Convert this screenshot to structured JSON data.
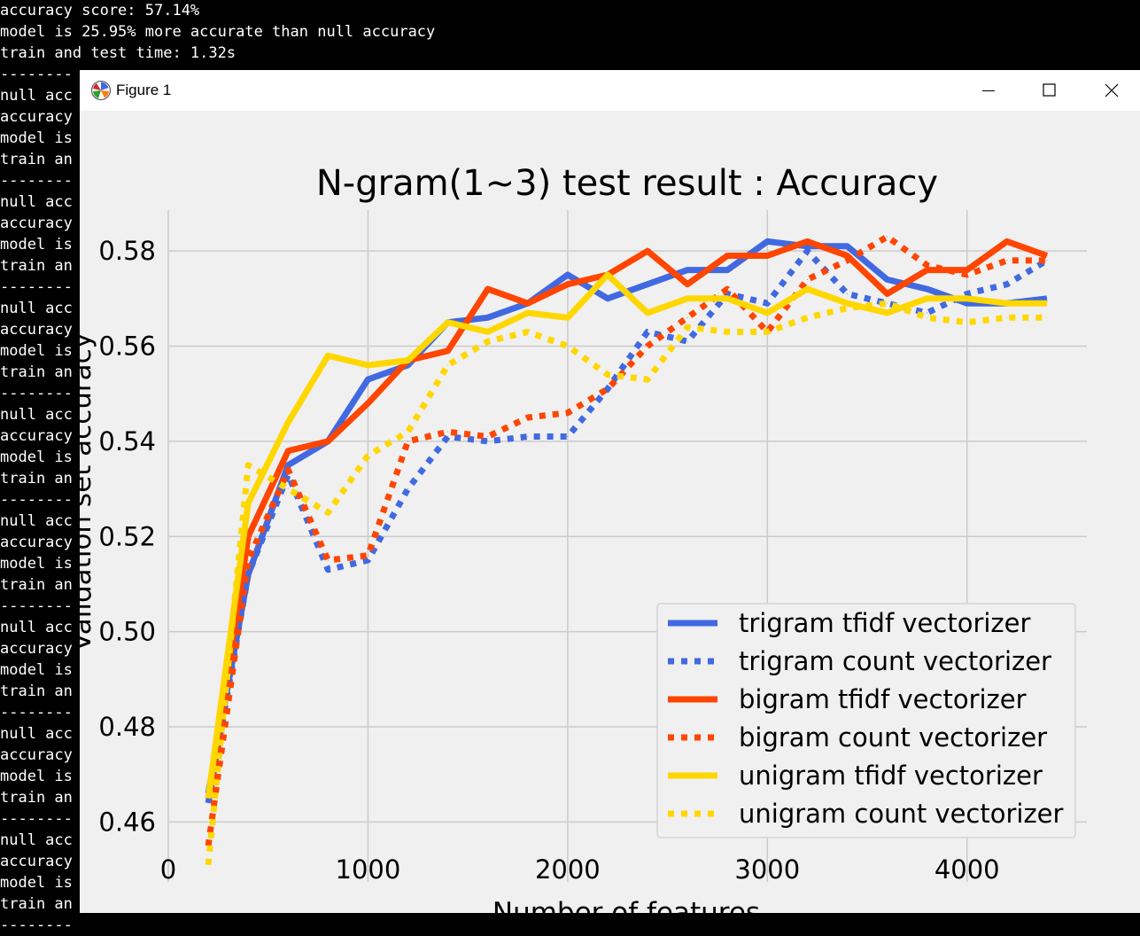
{
  "terminal": {
    "top_lines": [
      "accuracy score: 57.14%",
      "model is 25.95% more accurate than null accuracy",
      "train and test time: 1.32s",
      "--------"
    ],
    "repeat_block": [
      "null acc",
      "accuracy",
      "model is",
      "train an",
      "--------"
    ],
    "repeat_count": 8
  },
  "window": {
    "title": "Figure 1",
    "minimize_icon": "minimize-icon",
    "maximize_icon": "maximize-icon",
    "close_icon": "close-icon"
  },
  "chart_data": {
    "type": "line",
    "title": "N-gram(1~3) test result : Accuracy",
    "xlabel": "Number of features",
    "ylabel": "Validation set accuracy",
    "xlim": [
      0,
      4600
    ],
    "ylim": [
      0.4474,
      0.5886
    ],
    "x_ticks": [
      0,
      1000,
      2000,
      3000,
      4000
    ],
    "y_ticks": [
      0.46,
      0.48,
      0.5,
      0.52,
      0.54,
      0.56,
      0.58
    ],
    "x_tick_labels": [
      "0",
      "1000",
      "2000",
      "3000",
      "4000"
    ],
    "y_tick_labels": [
      "0.46",
      "0.48",
      "0.50",
      "0.52",
      "0.54",
      "0.56",
      "0.58"
    ],
    "grid": true,
    "legend_position": "lower right",
    "x": [
      200,
      400,
      600,
      800,
      1000,
      1200,
      1400,
      1600,
      1800,
      2000,
      2200,
      2400,
      2600,
      2800,
      3000,
      3200,
      3400,
      3600,
      3800,
      4000,
      4200,
      4400
    ],
    "series": [
      {
        "name": "trigram tfidf vectorizer",
        "color": "#4169e1",
        "style": "solid",
        "values": [
          0.466,
          0.512,
          0.535,
          0.54,
          0.553,
          0.556,
          0.565,
          0.566,
          0.569,
          0.575,
          0.57,
          0.573,
          0.576,
          0.576,
          0.582,
          0.581,
          0.581,
          0.574,
          0.572,
          0.569,
          0.569,
          0.57
        ]
      },
      {
        "name": "trigram count vectorizer",
        "color": "#4169e1",
        "style": "dotted",
        "values": [
          0.464,
          0.512,
          0.533,
          0.513,
          0.515,
          0.53,
          0.541,
          0.54,
          0.541,
          0.541,
          0.551,
          0.563,
          0.561,
          0.571,
          0.569,
          0.58,
          0.571,
          0.569,
          0.567,
          0.571,
          0.573,
          0.578
        ]
      },
      {
        "name": "bigram tfidf vectorizer",
        "color": "#ff4500",
        "style": "solid",
        "values": [
          0.465,
          0.52,
          0.538,
          0.54,
          0.548,
          0.557,
          0.559,
          0.572,
          0.569,
          0.573,
          0.575,
          0.58,
          0.573,
          0.579,
          0.579,
          0.582,
          0.579,
          0.571,
          0.576,
          0.576,
          0.582,
          0.579
        ]
      },
      {
        "name": "bigram count vectorizer",
        "color": "#ff4500",
        "style": "dotted",
        "values": [
          0.455,
          0.515,
          0.534,
          0.515,
          0.516,
          0.54,
          0.542,
          0.541,
          0.545,
          0.546,
          0.551,
          0.56,
          0.566,
          0.572,
          0.563,
          0.574,
          0.578,
          0.583,
          0.577,
          0.575,
          0.578,
          0.578
        ]
      },
      {
        "name": "unigram tfidf vectorizer",
        "color": "#ffd700",
        "style": "solid",
        "values": [
          0.465,
          0.527,
          0.544,
          0.558,
          0.556,
          0.557,
          0.565,
          0.563,
          0.567,
          0.566,
          0.575,
          0.567,
          0.57,
          0.57,
          0.567,
          0.572,
          0.569,
          0.567,
          0.57,
          0.57,
          0.569,
          0.569
        ]
      },
      {
        "name": "unigram count vectorizer",
        "color": "#ffd700",
        "style": "dotted",
        "values": [
          0.451,
          0.535,
          0.53,
          0.525,
          0.537,
          0.542,
          0.556,
          0.561,
          0.563,
          0.56,
          0.554,
          0.553,
          0.564,
          0.563,
          0.563,
          0.566,
          0.568,
          0.569,
          0.566,
          0.565,
          0.566,
          0.566
        ]
      }
    ]
  }
}
